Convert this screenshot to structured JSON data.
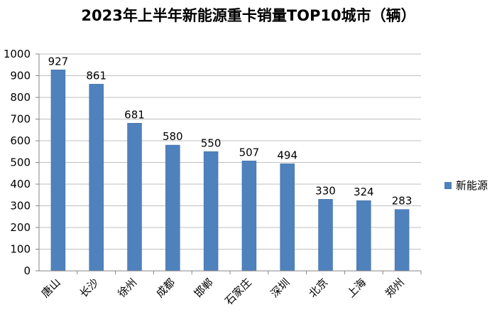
{
  "chart_data": {
    "type": "bar",
    "title": "2023年上半年新能源重卡销量TOP10城市（辆）",
    "categories": [
      "唐山",
      "长沙",
      "徐州",
      "成都",
      "邯郸",
      "石家庄",
      "深圳",
      "北京",
      "上海",
      "郑州"
    ],
    "series": [
      {
        "name": "新能源",
        "values": [
          927,
          861,
          681,
          580,
          550,
          507,
          494,
          330,
          324,
          283
        ]
      }
    ],
    "ylim": [
      0,
      1000
    ],
    "yticks": [
      0,
      100,
      200,
      300,
      400,
      500,
      600,
      700,
      800,
      900,
      1000
    ],
    "grid": true,
    "legend": "right",
    "colors": {
      "bar": "#4f81bd",
      "bar_edge": "#3f6fa8",
      "grid": "#bfbfbf",
      "axis": "#868686"
    }
  }
}
